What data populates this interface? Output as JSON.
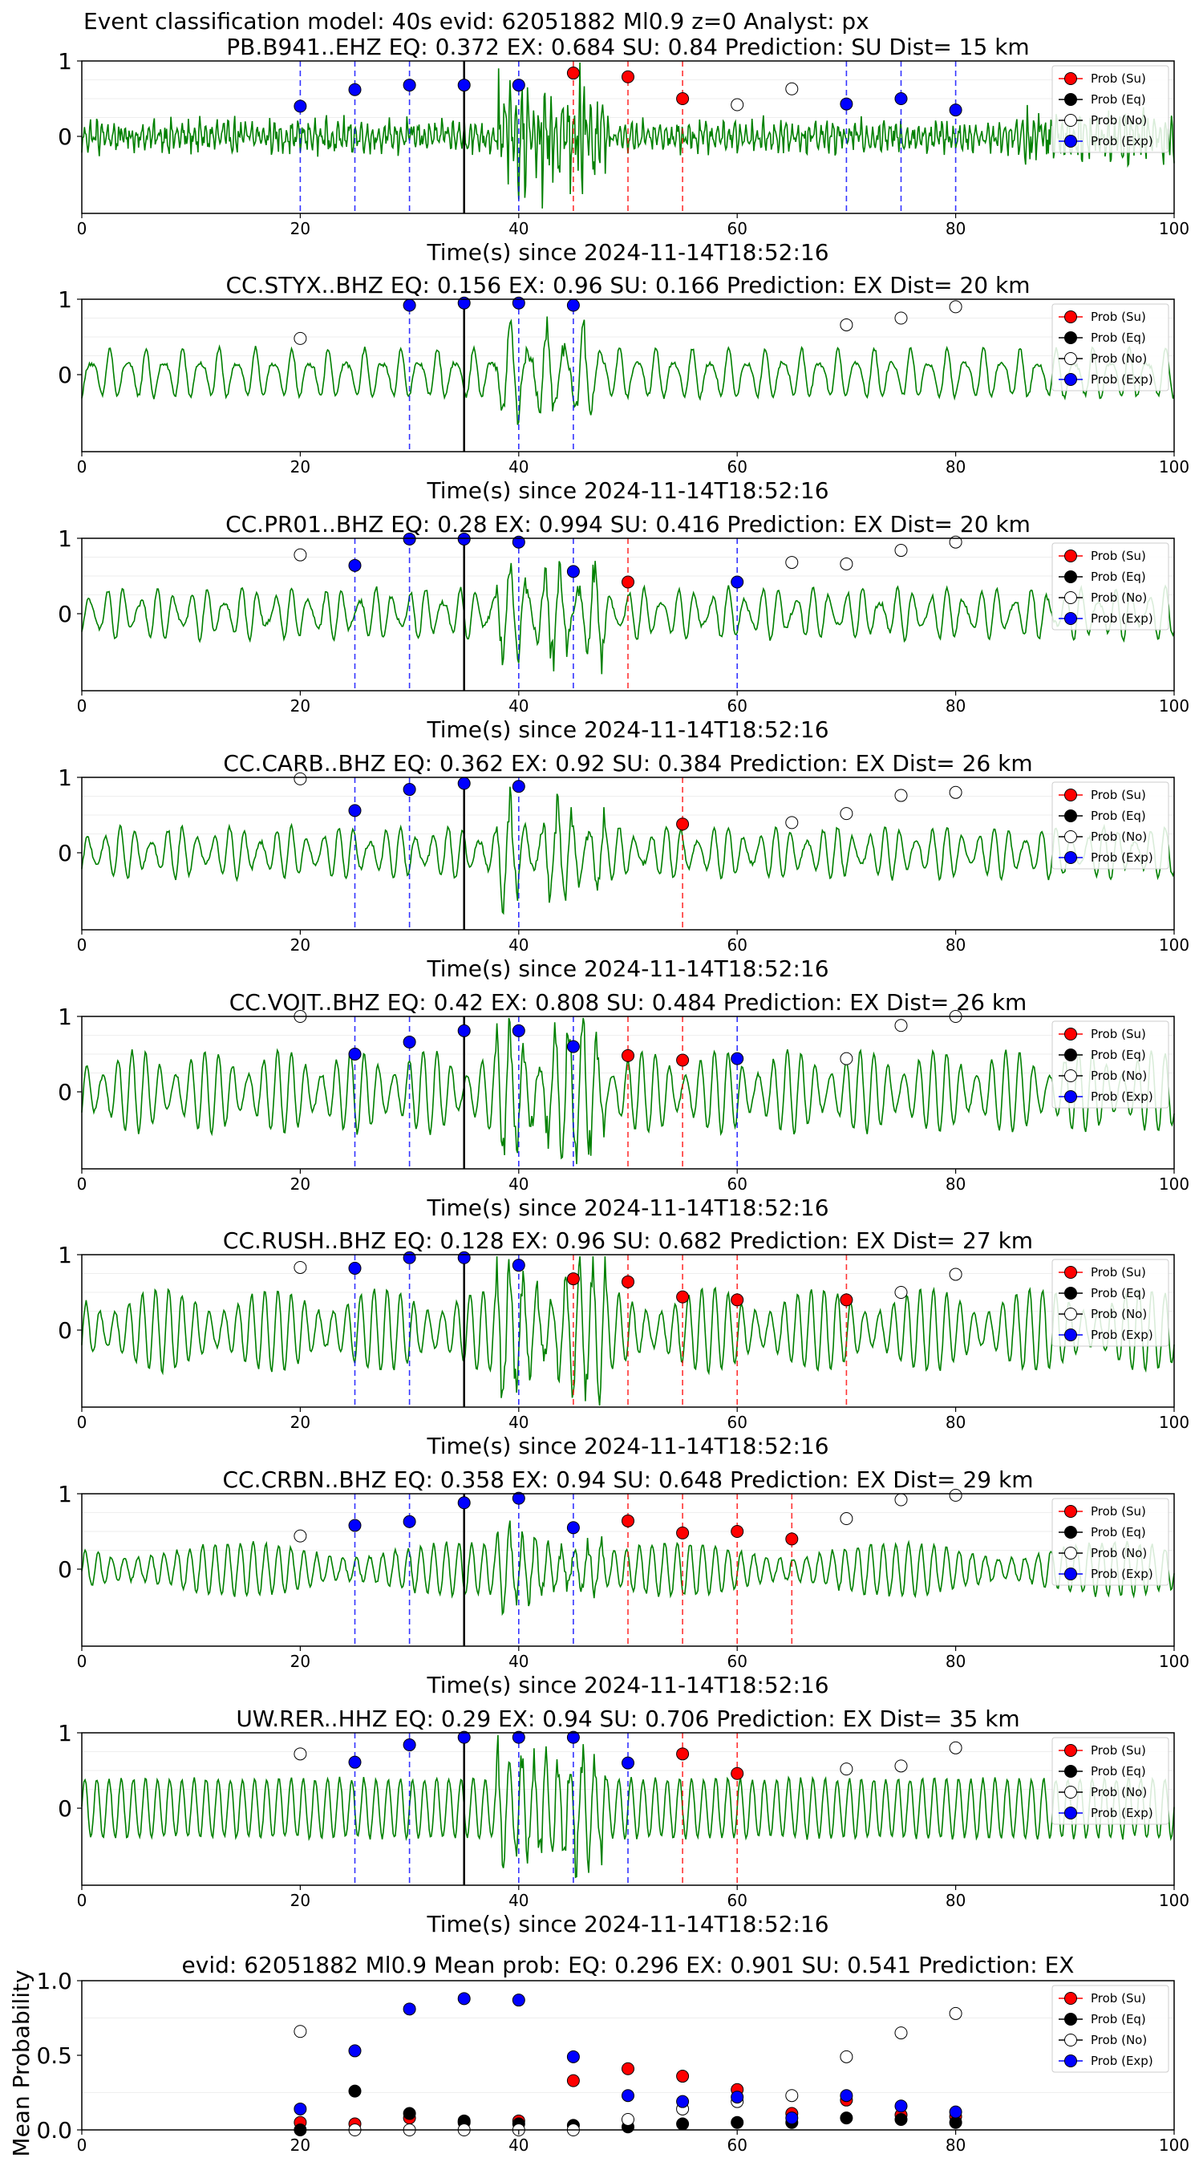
{
  "figure_title": "Event classification model: 40s evid: 62051882 Ml0.9 z=0 Analyst: px",
  "colors": {
    "su": "#ff0000",
    "eq": "#000000",
    "no": "#ffffff",
    "ex": "#0000ff",
    "trace": "#008000"
  },
  "legend_labels": [
    "Prob (Su)",
    "Prob (Eq)",
    "Prob (No)",
    "Prob (Exp)"
  ],
  "chart_data": [
    {
      "type": "scatter",
      "station": "PB.B941..EHZ",
      "title": "PB.B941..EHZ   EQ: 0.372  EX: 0.684  SU: 0.84   Prediction: SU    Dist= 15 km",
      "xlabel": "Time(s) since 2024-11-14T18:52:16",
      "ylabel": "",
      "xlim": [
        0,
        100
      ],
      "xticks": [
        0,
        20,
        40,
        60,
        80,
        100
      ],
      "yticks": [
        0,
        1
      ],
      "legend_position": "top-right",
      "event_line_x": 35,
      "trace_character": "noisy",
      "series": [
        {
          "name": "Prob (Su)",
          "points": [
            [
              45,
              0.84
            ],
            [
              50,
              0.79
            ],
            [
              55,
              0.5
            ]
          ]
        },
        {
          "name": "Prob (No)",
          "points": [
            [
              60,
              0.42
            ],
            [
              65,
              0.63
            ]
          ]
        },
        {
          "name": "Prob (Exp)",
          "points": [
            [
              20,
              0.4
            ],
            [
              25,
              0.62
            ],
            [
              30,
              0.68
            ],
            [
              35,
              0.68
            ],
            [
              40,
              0.68
            ],
            [
              70,
              0.43
            ],
            [
              75,
              0.5
            ],
            [
              80,
              0.35
            ]
          ]
        }
      ],
      "vlines": [
        {
          "x": 20,
          "color": "ex"
        },
        {
          "x": 25,
          "color": "ex"
        },
        {
          "x": 30,
          "color": "ex"
        },
        {
          "x": 40,
          "color": "ex"
        },
        {
          "x": 45,
          "color": "su"
        },
        {
          "x": 50,
          "color": "su"
        },
        {
          "x": 55,
          "color": "su"
        },
        {
          "x": 70,
          "color": "ex"
        },
        {
          "x": 75,
          "color": "ex"
        },
        {
          "x": 80,
          "color": "ex"
        }
      ]
    },
    {
      "type": "scatter",
      "station": "CC.STYX..BHZ",
      "title": "CC.STYX..BHZ   EQ: 0.156  EX: 0.96  SU: 0.166   Prediction: EX    Dist= 20 km",
      "xlabel": "Time(s) since 2024-11-14T18:52:16",
      "ylabel": "",
      "xlim": [
        0,
        100
      ],
      "xticks": [
        0,
        20,
        40,
        60,
        80,
        100
      ],
      "yticks": [
        0,
        1
      ],
      "legend_position": "top-right",
      "event_line_x": 35,
      "trace_character": "smooth",
      "series": [
        {
          "name": "Prob (No)",
          "points": [
            [
              20,
              0.48
            ],
            [
              70,
              0.66
            ],
            [
              75,
              0.75
            ],
            [
              80,
              0.9
            ]
          ]
        },
        {
          "name": "Prob (Exp)",
          "points": [
            [
              30,
              0.92
            ],
            [
              35,
              0.95
            ],
            [
              40,
              0.95
            ],
            [
              45,
              0.92
            ]
          ]
        }
      ],
      "vlines": [
        {
          "x": 30,
          "color": "ex"
        },
        {
          "x": 40,
          "color": "ex"
        },
        {
          "x": 45,
          "color": "ex"
        }
      ]
    },
    {
      "type": "scatter",
      "station": "CC.PR01..BHZ",
      "title": "CC.PR01..BHZ   EQ: 0.28  EX: 0.994  SU: 0.416   Prediction: EX    Dist= 20 km",
      "xlabel": "Time(s) since 2024-11-14T18:52:16",
      "ylabel": "",
      "xlim": [
        0,
        100
      ],
      "xticks": [
        0,
        20,
        40,
        60,
        80,
        100
      ],
      "yticks": [
        0,
        1
      ],
      "legend_position": "top-right",
      "event_line_x": 35,
      "trace_character": "smooth",
      "series": [
        {
          "name": "Prob (Su)",
          "points": [
            [
              50,
              0.42
            ]
          ]
        },
        {
          "name": "Prob (No)",
          "points": [
            [
              20,
              0.78
            ],
            [
              65,
              0.68
            ],
            [
              70,
              0.66
            ],
            [
              75,
              0.84
            ],
            [
              80,
              0.95
            ]
          ]
        },
        {
          "name": "Prob (Exp)",
          "points": [
            [
              25,
              0.64
            ],
            [
              30,
              0.99
            ],
            [
              35,
              0.99
            ],
            [
              40,
              0.95
            ],
            [
              45,
              0.56
            ],
            [
              60,
              0.42
            ]
          ]
        }
      ],
      "vlines": [
        {
          "x": 25,
          "color": "ex"
        },
        {
          "x": 30,
          "color": "ex"
        },
        {
          "x": 40,
          "color": "ex"
        },
        {
          "x": 45,
          "color": "ex"
        },
        {
          "x": 50,
          "color": "su"
        },
        {
          "x": 60,
          "color": "ex"
        }
      ]
    },
    {
      "type": "scatter",
      "station": "CC.CARB..BHZ",
      "title": "CC.CARB..BHZ   EQ: 0.362  EX: 0.92  SU: 0.384   Prediction: EX    Dist= 26 km",
      "xlabel": "Time(s) since 2024-11-14T18:52:16",
      "ylabel": "",
      "xlim": [
        0,
        100
      ],
      "xticks": [
        0,
        20,
        40,
        60,
        80,
        100
      ],
      "yticks": [
        0,
        1
      ],
      "legend_position": "top-right",
      "event_line_x": 35,
      "trace_character": "smooth",
      "series": [
        {
          "name": "Prob (Su)",
          "points": [
            [
              55,
              0.38
            ]
          ]
        },
        {
          "name": "Prob (No)",
          "points": [
            [
              20,
              0.98
            ],
            [
              65,
              0.4
            ],
            [
              70,
              0.52
            ],
            [
              75,
              0.76
            ],
            [
              80,
              0.8
            ]
          ]
        },
        {
          "name": "Prob (Exp)",
          "points": [
            [
              25,
              0.56
            ],
            [
              30,
              0.84
            ],
            [
              35,
              0.92
            ],
            [
              40,
              0.88
            ]
          ]
        }
      ],
      "vlines": [
        {
          "x": 25,
          "color": "ex"
        },
        {
          "x": 30,
          "color": "ex"
        },
        {
          "x": 40,
          "color": "ex"
        },
        {
          "x": 55,
          "color": "su"
        }
      ]
    },
    {
      "type": "scatter",
      "station": "CC.VOIT..BHZ",
      "title": "CC.VOIT..BHZ   EQ: 0.42  EX: 0.808  SU: 0.484   Prediction: EX    Dist= 26 km",
      "xlabel": "Time(s) since 2024-11-14T18:52:16",
      "ylabel": "",
      "xlim": [
        0,
        100
      ],
      "xticks": [
        0,
        20,
        40,
        60,
        80,
        100
      ],
      "yticks": [
        0,
        1
      ],
      "legend_position": "top-right",
      "event_line_x": 35,
      "trace_character": "large-smooth",
      "series": [
        {
          "name": "Prob (Su)",
          "points": [
            [
              50,
              0.48
            ],
            [
              55,
              0.42
            ]
          ]
        },
        {
          "name": "Prob (No)",
          "points": [
            [
              20,
              1.0
            ],
            [
              70,
              0.44
            ],
            [
              75,
              0.88
            ],
            [
              80,
              1.0
            ]
          ]
        },
        {
          "name": "Prob (Exp)",
          "points": [
            [
              25,
              0.5
            ],
            [
              30,
              0.66
            ],
            [
              35,
              0.81
            ],
            [
              40,
              0.81
            ],
            [
              45,
              0.6
            ],
            [
              60,
              0.44
            ]
          ]
        }
      ],
      "vlines": [
        {
          "x": 25,
          "color": "ex"
        },
        {
          "x": 30,
          "color": "ex"
        },
        {
          "x": 40,
          "color": "ex"
        },
        {
          "x": 45,
          "color": "ex"
        },
        {
          "x": 50,
          "color": "su"
        },
        {
          "x": 55,
          "color": "su"
        },
        {
          "x": 60,
          "color": "ex"
        }
      ]
    },
    {
      "type": "scatter",
      "station": "CC.RUSH..BHZ",
      "title": "CC.RUSH..BHZ   EQ: 0.128  EX: 0.96  SU: 0.682   Prediction: EX    Dist= 27 km",
      "xlabel": "Time(s) since 2024-11-14T18:52:16",
      "ylabel": "",
      "xlim": [
        0,
        100
      ],
      "xticks": [
        0,
        20,
        40,
        60,
        80,
        100
      ],
      "yticks": [
        0,
        1
      ],
      "legend_position": "top-right",
      "event_line_x": 35,
      "trace_character": "large-smooth",
      "series": [
        {
          "name": "Prob (Su)",
          "points": [
            [
              45,
              0.68
            ],
            [
              50,
              0.64
            ],
            [
              55,
              0.44
            ],
            [
              60,
              0.4
            ],
            [
              70,
              0.4
            ]
          ]
        },
        {
          "name": "Prob (No)",
          "points": [
            [
              20,
              0.83
            ],
            [
              75,
              0.5
            ],
            [
              80,
              0.74
            ]
          ]
        },
        {
          "name": "Prob (Exp)",
          "points": [
            [
              25,
              0.82
            ],
            [
              30,
              0.96
            ],
            [
              35,
              0.96
            ],
            [
              40,
              0.86
            ]
          ]
        }
      ],
      "vlines": [
        {
          "x": 25,
          "color": "ex"
        },
        {
          "x": 30,
          "color": "ex"
        },
        {
          "x": 40,
          "color": "ex"
        },
        {
          "x": 45,
          "color": "su"
        },
        {
          "x": 50,
          "color": "su"
        },
        {
          "x": 55,
          "color": "su"
        },
        {
          "x": 60,
          "color": "su"
        },
        {
          "x": 70,
          "color": "su"
        }
      ]
    },
    {
      "type": "scatter",
      "station": "CC.CRBN..BHZ",
      "title": "CC.CRBN..BHZ   EQ: 0.358  EX: 0.94  SU: 0.648   Prediction: EX    Dist= 29 km",
      "xlabel": "Time(s) since 2024-11-14T18:52:16",
      "ylabel": "",
      "xlim": [
        0,
        100
      ],
      "xticks": [
        0,
        20,
        40,
        60,
        80,
        100
      ],
      "yticks": [
        0,
        1
      ],
      "legend_position": "top-right",
      "event_line_x": 35,
      "trace_character": "smooth",
      "series": [
        {
          "name": "Prob (Su)",
          "points": [
            [
              50,
              0.64
            ],
            [
              55,
              0.48
            ],
            [
              60,
              0.5
            ],
            [
              65,
              0.4
            ]
          ]
        },
        {
          "name": "Prob (No)",
          "points": [
            [
              20,
              0.44
            ],
            [
              70,
              0.67
            ],
            [
              75,
              0.92
            ],
            [
              80,
              0.98
            ]
          ]
        },
        {
          "name": "Prob (Exp)",
          "points": [
            [
              25,
              0.58
            ],
            [
              30,
              0.63
            ],
            [
              35,
              0.88
            ],
            [
              40,
              0.94
            ],
            [
              45,
              0.55
            ]
          ]
        }
      ],
      "vlines": [
        {
          "x": 25,
          "color": "ex"
        },
        {
          "x": 30,
          "color": "ex"
        },
        {
          "x": 40,
          "color": "ex"
        },
        {
          "x": 45,
          "color": "ex"
        },
        {
          "x": 50,
          "color": "su"
        },
        {
          "x": 55,
          "color": "su"
        },
        {
          "x": 60,
          "color": "su"
        },
        {
          "x": 65,
          "color": "su"
        }
      ]
    },
    {
      "type": "scatter",
      "station": "UW.RER..HHZ",
      "title": "UW.RER..HHZ   EQ: 0.29  EX: 0.94  SU: 0.706   Prediction: EX    Dist= 35 km",
      "xlabel": "Time(s) since 2024-11-14T18:52:16",
      "ylabel": "",
      "xlim": [
        0,
        100
      ],
      "xticks": [
        0,
        20,
        40,
        60,
        80,
        100
      ],
      "yticks": [
        0,
        1
      ],
      "legend_position": "top-right",
      "event_line_x": 35,
      "trace_character": "large-smooth",
      "series": [
        {
          "name": "Prob (Su)",
          "points": [
            [
              55,
              0.72
            ],
            [
              60,
              0.46
            ]
          ]
        },
        {
          "name": "Prob (No)",
          "points": [
            [
              20,
              0.72
            ],
            [
              70,
              0.52
            ],
            [
              75,
              0.56
            ],
            [
              80,
              0.8
            ]
          ]
        },
        {
          "name": "Prob (Exp)",
          "points": [
            [
              25,
              0.61
            ],
            [
              30,
              0.84
            ],
            [
              35,
              0.94
            ],
            [
              40,
              0.94
            ],
            [
              45,
              0.94
            ],
            [
              50,
              0.6
            ]
          ]
        }
      ],
      "vlines": [
        {
          "x": 25,
          "color": "ex"
        },
        {
          "x": 30,
          "color": "ex"
        },
        {
          "x": 40,
          "color": "ex"
        },
        {
          "x": 45,
          "color": "ex"
        },
        {
          "x": 50,
          "color": "ex"
        },
        {
          "x": 55,
          "color": "su"
        },
        {
          "x": 60,
          "color": "su"
        }
      ]
    },
    {
      "type": "scatter",
      "station": "mean",
      "title": "evid: 62051882  Ml0.9   Mean prob:   EQ: 0.296  EX: 0.901  SU: 0.541   Prediction: EX",
      "xlabel": "",
      "ylabel": "Mean Probability",
      "xlim": [
        0,
        100
      ],
      "ylim": [
        0,
        1
      ],
      "xticks": [
        0,
        20,
        40,
        60,
        80,
        100
      ],
      "yticks": [
        0.0,
        0.5,
        1.0
      ],
      "ytick_labels": [
        "0.0",
        "0.5",
        "1.0"
      ],
      "legend_position": "top-right",
      "x": [
        20,
        25,
        30,
        35,
        40,
        45,
        50,
        55,
        60,
        65,
        70,
        75,
        80
      ],
      "series": [
        {
          "name": "Prob (Su)",
          "values": [
            0.05,
            0.04,
            0.08,
            0.05,
            0.06,
            0.33,
            0.41,
            0.36,
            0.27,
            0.11,
            0.2,
            0.1,
            0.09
          ]
        },
        {
          "name": "Prob (Eq)",
          "values": [
            0.0,
            0.26,
            0.11,
            0.06,
            0.04,
            0.03,
            0.02,
            0.04,
            0.05,
            0.05,
            0.08,
            0.07,
            0.05
          ]
        },
        {
          "name": "Prob (No)",
          "values": [
            0.66,
            0.0,
            0.0,
            0.0,
            0.0,
            0.0,
            0.07,
            0.14,
            0.19,
            0.23,
            0.49,
            0.65,
            0.78
          ]
        },
        {
          "name": "Prob (Exp)",
          "values": [
            0.14,
            0.53,
            0.81,
            0.88,
            0.87,
            0.49,
            0.23,
            0.19,
            0.22,
            0.08,
            0.23,
            0.16,
            0.12
          ]
        }
      ]
    }
  ]
}
